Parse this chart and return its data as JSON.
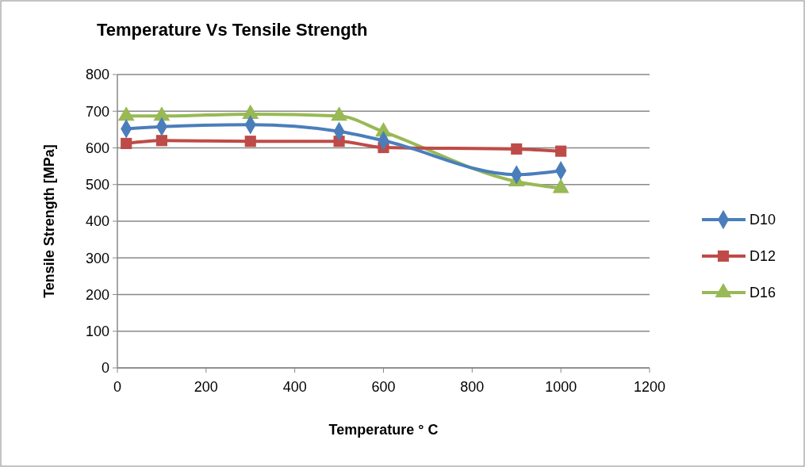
{
  "chart_data": {
    "type": "line",
    "title": "Temperature  Vs Tensile  Strength",
    "xlabel": "Temperature  ° C",
    "ylabel": "Tensile  Strength  [MPa]",
    "x": [
      20,
      100,
      300,
      500,
      600,
      900,
      1000
    ],
    "series": [
      {
        "name": "D10",
        "color": "#4a7ebb",
        "marker": "diamond",
        "values": [
          652,
          658,
          663,
          645,
          620,
          527,
          538
        ]
      },
      {
        "name": "D12",
        "color": "#be4b48",
        "marker": "square",
        "values": [
          612,
          620,
          618,
          618,
          601,
          597,
          591
        ]
      },
      {
        "name": "D16",
        "color": "#98b954",
        "marker": "triangle",
        "values": [
          687,
          687,
          692,
          687,
          644,
          508,
          490
        ]
      }
    ],
    "xlim": [
      0,
      1200
    ],
    "xticks": [
      0,
      200,
      400,
      600,
      800,
      1000,
      1200
    ],
    "ylim": [
      0,
      800
    ],
    "yticks": [
      0,
      100,
      200,
      300,
      400,
      500,
      600,
      700,
      800
    ],
    "grid": "y",
    "legend": "right",
    "line_style": "solid"
  }
}
